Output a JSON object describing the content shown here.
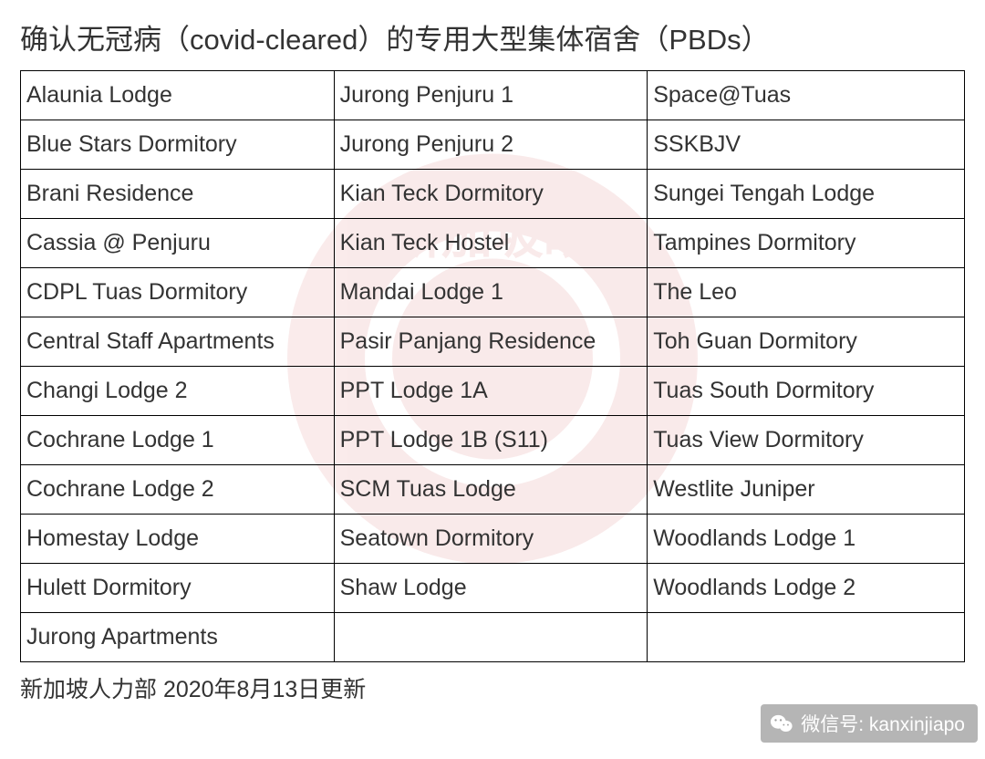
{
  "title": "确认无冠病（covid-cleared）的专用大型集体宿舍（PBDs）",
  "footer": "新加坡人力部 2020年8月13日更新",
  "watermark_text": "新加坡眼",
  "wechat_label": "微信号: kanxinjiapo",
  "table": {
    "rows": [
      [
        "Alaunia Lodge",
        "Jurong Penjuru 1",
        "Space@Tuas"
      ],
      [
        "Blue Stars Dormitory",
        "Jurong Penjuru 2",
        "SSKBJV"
      ],
      [
        "Brani Residence",
        "Kian Teck Dormitory",
        "Sungei Tengah Lodge"
      ],
      [
        "Cassia @ Penjuru",
        "Kian Teck Hostel",
        "Tampines Dormitory"
      ],
      [
        "CDPL Tuas Dormitory",
        "Mandai Lodge 1",
        "The Leo"
      ],
      [
        "Central Staff Apartments",
        "Pasir Panjang Residence",
        "Toh Guan Dormitory"
      ],
      [
        "Changi Lodge 2",
        "PPT Lodge 1A",
        "Tuas South Dormitory"
      ],
      [
        "Cochrane Lodge 1",
        "PPT Lodge 1B (S11)",
        "Tuas View Dormitory"
      ],
      [
        "Cochrane Lodge 2",
        "SCM Tuas Lodge",
        "Westlite Juniper"
      ],
      [
        "Homestay Lodge",
        "Seatown Dormitory",
        "Woodlands Lodge 1"
      ],
      [
        "Hulett Dormitory",
        "Shaw Lodge",
        "Woodlands Lodge 2"
      ],
      [
        "Jurong Apartments",
        "",
        ""
      ]
    ]
  },
  "styling": {
    "background_color": "#ffffff",
    "border_color": "#000000",
    "text_color": "#333333",
    "title_fontsize": 31,
    "cell_fontsize": 25,
    "footer_fontsize": 25,
    "watermark_color": "#c00000",
    "watermark_opacity": 0.08,
    "badge_bg": "rgba(120,120,120,0.55)",
    "badge_text_color": "#ffffff"
  }
}
